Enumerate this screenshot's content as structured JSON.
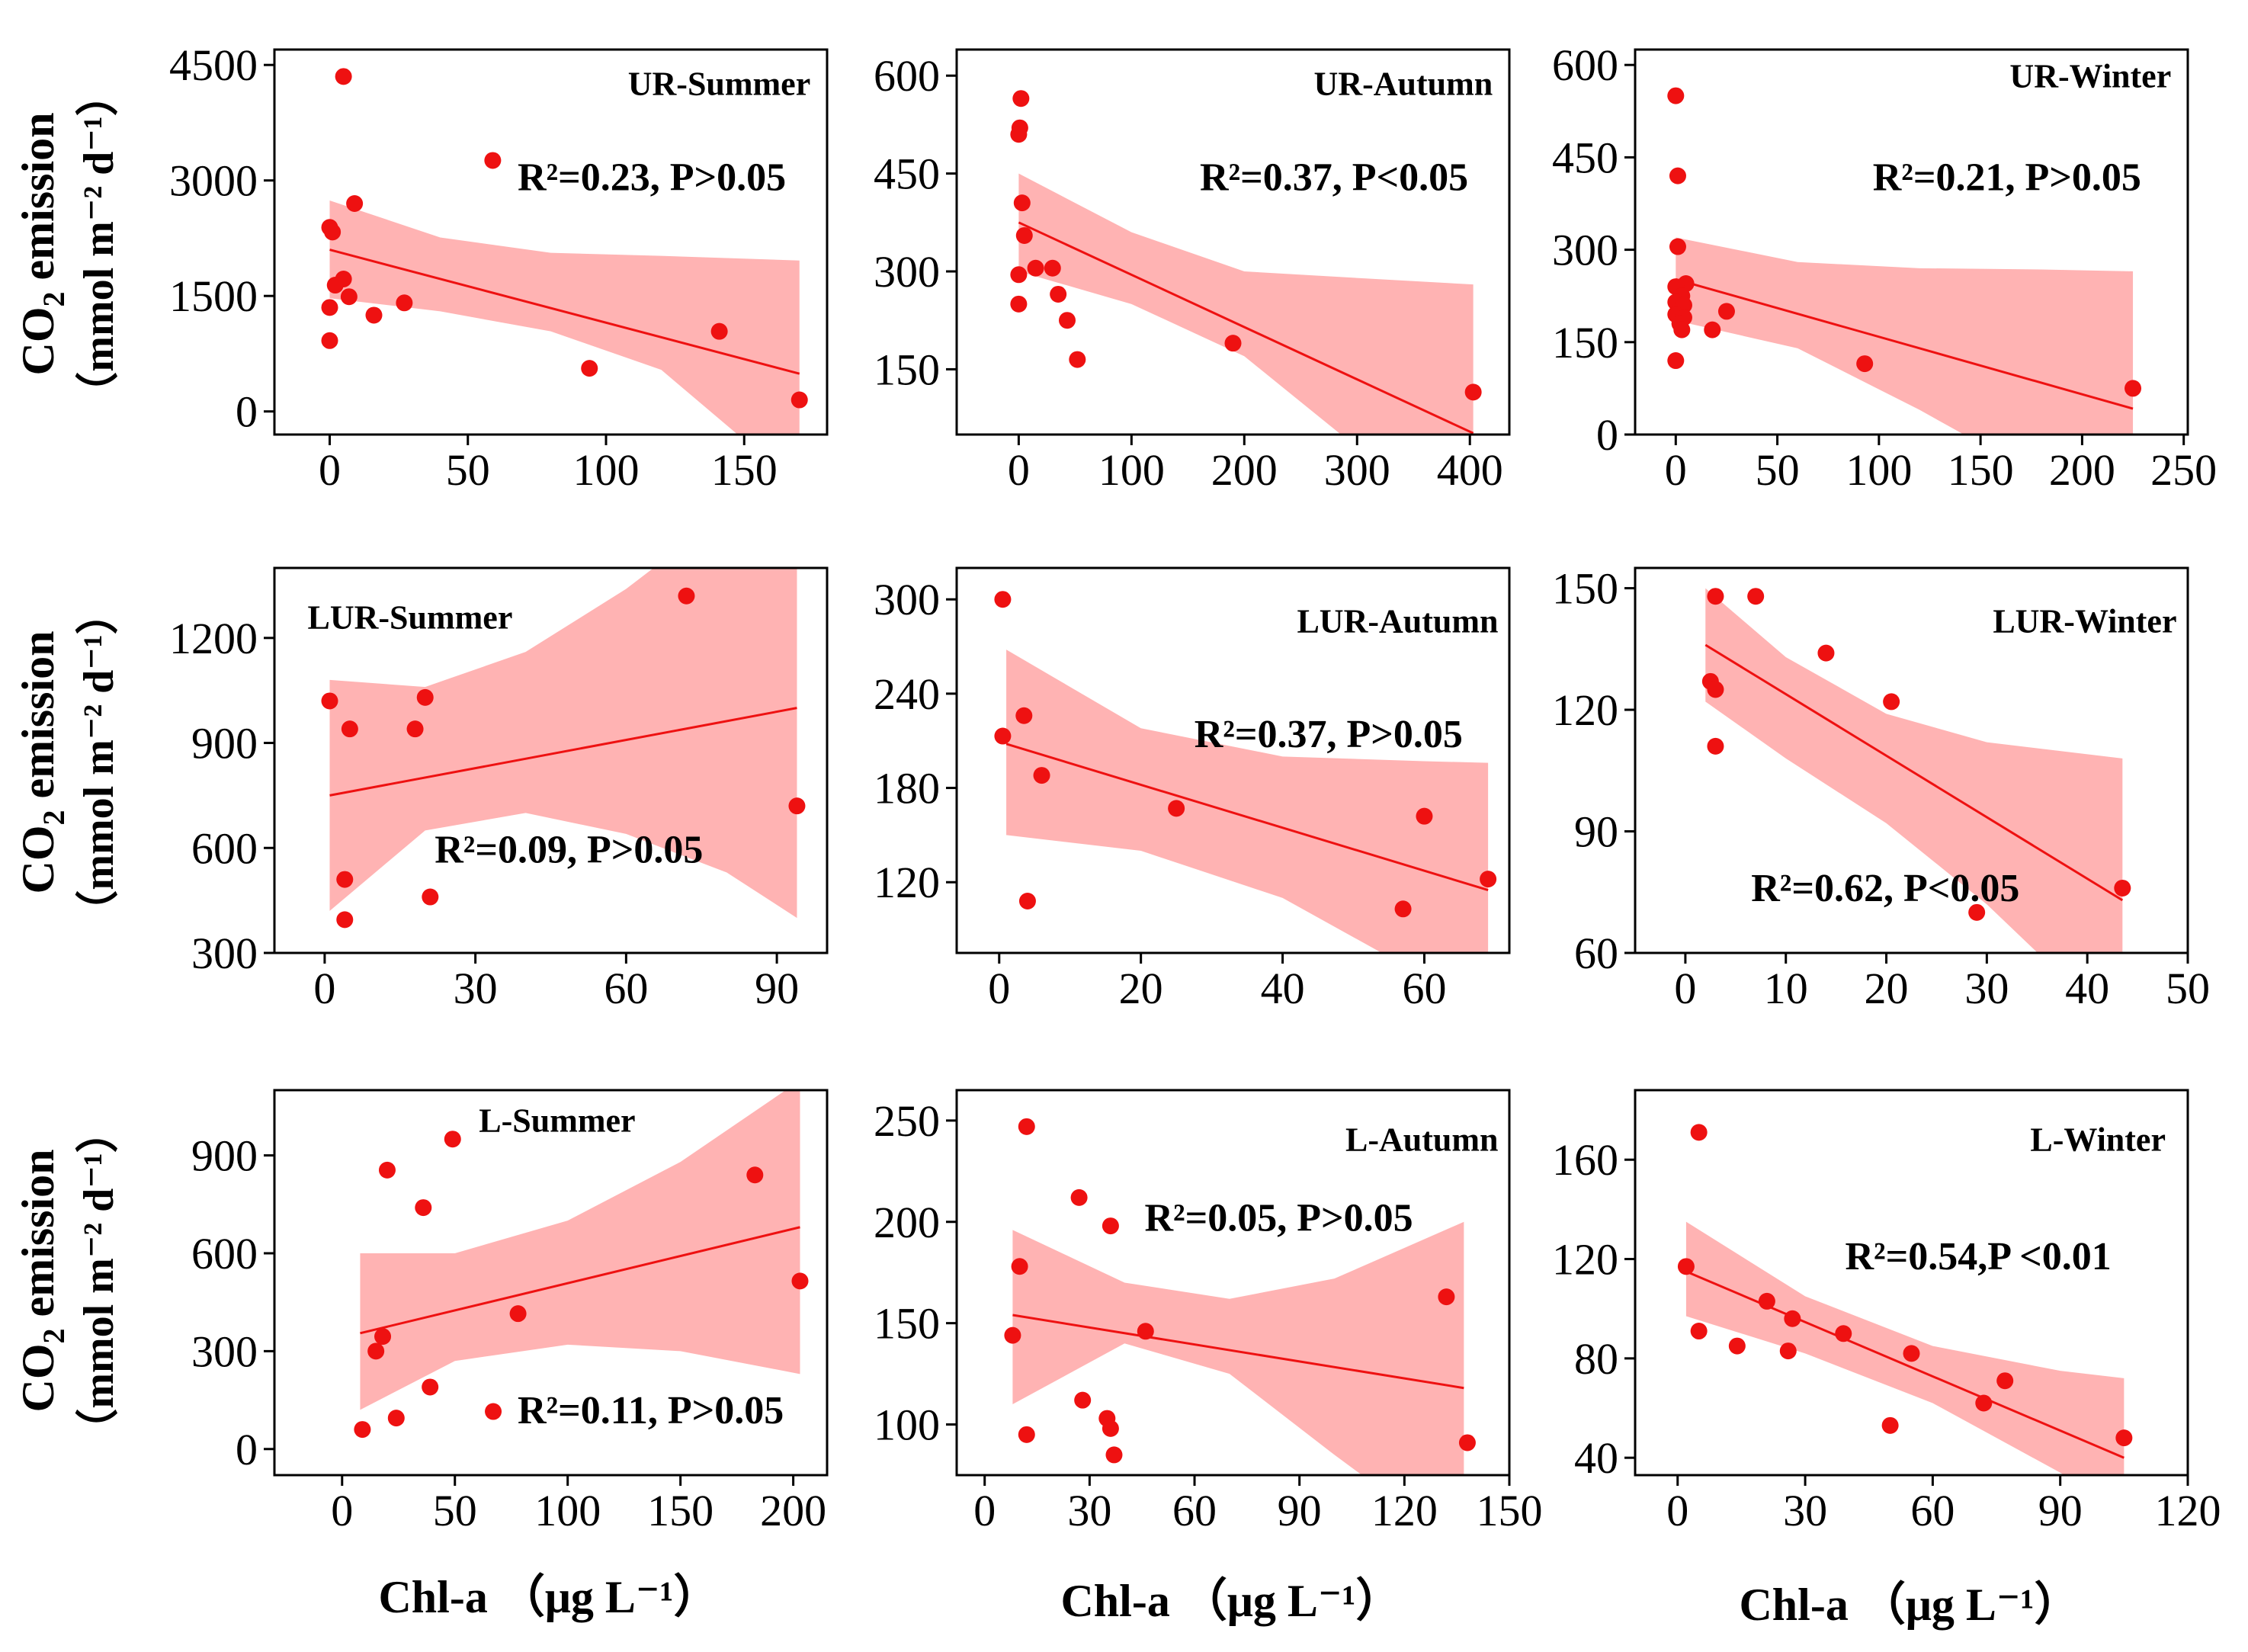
{
  "figure": {
    "y_axis_label_main": "CO",
    "y_axis_label_sub": "2",
    "y_axis_label_rest": " emission",
    "y_axis_unit": "（mmol m⁻² d⁻¹）",
    "x_axis_label": "Chl-a （μg L⁻¹）"
  },
  "colors": {
    "point": "#ee1111",
    "line": "#ee1111",
    "band": "#ffb3b3"
  },
  "chart_data": [
    {
      "type": "scatter",
      "label": "UR-Summer",
      "stat_text": "R²=0.23, P>0.05",
      "xlabel": "Chl-a （μg L⁻¹）",
      "ylabel": "CO2 emission (mmol m⁻² d⁻¹)",
      "xlim": [
        -20,
        180
      ],
      "ylim": [
        -300,
        4700
      ],
      "xticks": [
        0,
        50,
        100,
        150
      ],
      "yticks": [
        0,
        1500,
        3000,
        4500
      ],
      "points": [
        [
          5,
          4350
        ],
        [
          59,
          3260
        ],
        [
          9,
          2700
        ],
        [
          0,
          2390
        ],
        [
          1,
          2330
        ],
        [
          5,
          1720
        ],
        [
          2,
          1640
        ],
        [
          7,
          1490
        ],
        [
          0,
          1350
        ],
        [
          27,
          1410
        ],
        [
          16,
          1250
        ],
        [
          0,
          920
        ],
        [
          141,
          1040
        ],
        [
          94,
          560
        ],
        [
          170,
          150
        ]
      ],
      "fit": [
        [
          0,
          2100
        ],
        [
          170,
          490
        ]
      ],
      "band_upper": [
        [
          0,
          2740
        ],
        [
          40,
          2260
        ],
        [
          80,
          2060
        ],
        [
          120,
          2020
        ],
        [
          170,
          1960
        ]
      ],
      "band_lower": [
        [
          0,
          1470
        ],
        [
          40,
          1300
        ],
        [
          80,
          1040
        ],
        [
          120,
          540
        ],
        [
          170,
          -980
        ]
      ]
    },
    {
      "type": "scatter",
      "label": "UR-Autumn",
      "stat_text": "R²=0.37, P<0.05",
      "xlabel": "Chl-a （μg L⁻¹）",
      "ylabel": "CO2 emission (mmol m⁻² d⁻¹)",
      "xlim": [
        -55,
        435
      ],
      "ylim": [
        50,
        640
      ],
      "xticks": [
        0,
        100,
        200,
        300,
        400
      ],
      "yticks": [
        150,
        300,
        450,
        600
      ],
      "points": [
        [
          2,
          565
        ],
        [
          1,
          520
        ],
        [
          0,
          510
        ],
        [
          3,
          405
        ],
        [
          5,
          355
        ],
        [
          15,
          305
        ],
        [
          30,
          305
        ],
        [
          0,
          295
        ],
        [
          35,
          265
        ],
        [
          43,
          225
        ],
        [
          0,
          250
        ],
        [
          52,
          165
        ],
        [
          190,
          190
        ],
        [
          403,
          115
        ]
      ],
      "fit": [
        [
          0,
          375
        ],
        [
          403,
          52
        ]
      ],
      "band_upper": [
        [
          0,
          450
        ],
        [
          100,
          360
        ],
        [
          200,
          300
        ],
        [
          300,
          290
        ],
        [
          403,
          280
        ]
      ],
      "band_lower": [
        [
          0,
          300
        ],
        [
          100,
          250
        ],
        [
          200,
          170
        ],
        [
          300,
          30
        ],
        [
          403,
          -180
        ]
      ]
    },
    {
      "type": "scatter",
      "label": "UR-Winter",
      "stat_text": "R²=0.21, P>0.05",
      "xlabel": "Chl-a （μg L⁻¹）",
      "ylabel": "CO2 emission (mmol m⁻² d⁻¹)",
      "xlim": [
        -20,
        252
      ],
      "ylim": [
        0,
        625
      ],
      "xticks": [
        0,
        50,
        100,
        150,
        200,
        250
      ],
      "yticks": [
        0,
        150,
        300,
        450,
        600
      ],
      "points": [
        [
          0,
          550
        ],
        [
          1,
          420
        ],
        [
          1,
          305
        ],
        [
          5,
          245
        ],
        [
          0,
          240
        ],
        [
          3,
          225
        ],
        [
          0,
          215
        ],
        [
          4,
          210
        ],
        [
          0,
          195
        ],
        [
          4,
          190
        ],
        [
          2,
          180
        ],
        [
          3,
          170
        ],
        [
          18,
          170
        ],
        [
          25,
          200
        ],
        [
          0,
          120
        ],
        [
          93,
          115
        ],
        [
          225,
          75
        ]
      ],
      "fit": [
        [
          0,
          252
        ],
        [
          225,
          42
        ]
      ],
      "band_upper": [
        [
          0,
          320
        ],
        [
          60,
          280
        ],
        [
          120,
          270
        ],
        [
          180,
          268
        ],
        [
          225,
          265
        ]
      ],
      "band_lower": [
        [
          0,
          185
        ],
        [
          60,
          140
        ],
        [
          120,
          40
        ],
        [
          180,
          -70
        ],
        [
          225,
          -190
        ]
      ]
    },
    {
      "type": "scatter",
      "label": "LUR-Summer",
      "stat_text": "R²=0.09, P>0.05",
      "xlabel": "Chl-a （μg L⁻¹）",
      "ylabel": "CO2 emission (mmol m⁻² d⁻¹)",
      "xlim": [
        -10,
        100
      ],
      "ylim": [
        300,
        1400
      ],
      "xticks": [
        0,
        30,
        60,
        90
      ],
      "yticks": [
        300,
        600,
        900,
        1200
      ],
      "points": [
        [
          72,
          1320
        ],
        [
          1,
          1020
        ],
        [
          20,
          1030
        ],
        [
          18,
          940
        ],
        [
          5,
          940
        ],
        [
          94,
          720
        ],
        [
          4,
          510
        ],
        [
          21,
          460
        ],
        [
          4,
          395
        ]
      ],
      "fit": [
        [
          1,
          750
        ],
        [
          94,
          1000
        ]
      ],
      "band_upper": [
        [
          1,
          1080
        ],
        [
          20,
          1060
        ],
        [
          40,
          1160
        ],
        [
          60,
          1340
        ],
        [
          80,
          1560
        ],
        [
          94,
          1720
        ]
      ],
      "band_lower": [
        [
          1,
          420
        ],
        [
          20,
          650
        ],
        [
          40,
          700
        ],
        [
          60,
          640
        ],
        [
          80,
          530
        ],
        [
          94,
          400
        ]
      ]
    },
    {
      "type": "scatter",
      "label": "LUR-Autumn",
      "stat_text": "R²=0.37, P>0.05",
      "xlabel": "Chl-a （μg L⁻¹）",
      "ylabel": "CO2 emission (mmol m⁻² d⁻¹)",
      "xlim": [
        -6,
        72
      ],
      "ylim": [
        75,
        320
      ],
      "xticks": [
        0,
        20,
        40,
        60
      ],
      "yticks": [
        120,
        180,
        240,
        300
      ],
      "points": [
        [
          0.5,
          300
        ],
        [
          3.5,
          226
        ],
        [
          0.5,
          213
        ],
        [
          6,
          188
        ],
        [
          25,
          167
        ],
        [
          60,
          162
        ],
        [
          69,
          122
        ],
        [
          4,
          108
        ],
        [
          57,
          103
        ]
      ],
      "fit": [
        [
          1,
          208
        ],
        [
          69,
          115
        ]
      ],
      "band_upper": [
        [
          1,
          268
        ],
        [
          20,
          218
        ],
        [
          40,
          200
        ],
        [
          60,
          197
        ],
        [
          69,
          196
        ]
      ],
      "band_lower": [
        [
          1,
          150
        ],
        [
          20,
          140
        ],
        [
          40,
          110
        ],
        [
          60,
          60
        ],
        [
          69,
          35
        ]
      ]
    },
    {
      "type": "scatter",
      "label": "LUR-Winter",
      "stat_text": "R²=0.62, P<0.05",
      "xlabel": "Chl-a （μg L⁻¹）",
      "ylabel": "CO2 emission (mmol m⁻² d⁻¹)",
      "xlim": [
        -5,
        50
      ],
      "ylim": [
        60,
        155
      ],
      "xticks": [
        0,
        10,
        20,
        30,
        40,
        50
      ],
      "yticks": [
        60,
        90,
        120,
        150
      ],
      "points": [
        [
          3,
          148
        ],
        [
          7,
          148
        ],
        [
          14,
          134
        ],
        [
          2.5,
          127
        ],
        [
          3,
          125
        ],
        [
          20.5,
          122
        ],
        [
          3,
          111
        ],
        [
          29,
          70
        ],
        [
          43.5,
          76
        ]
      ],
      "fit": [
        [
          2,
          136
        ],
        [
          43.5,
          73
        ]
      ],
      "band_upper": [
        [
          2,
          150
        ],
        [
          10,
          133
        ],
        [
          20,
          119
        ],
        [
          30,
          112
        ],
        [
          43.5,
          108
        ]
      ],
      "band_lower": [
        [
          2,
          122
        ],
        [
          10,
          108
        ],
        [
          20,
          92
        ],
        [
          30,
          72
        ],
        [
          43.5,
          40
        ]
      ]
    },
    {
      "type": "scatter",
      "label": "L-Summer",
      "stat_text": "R²=0.11, P>0.05",
      "xlabel": "Chl-a （μg L⁻¹）",
      "ylabel": "CO2 emission (mmol m⁻² d⁻¹)",
      "xlim": [
        -30,
        215
      ],
      "ylim": [
        -80,
        1100
      ],
      "xticks": [
        0,
        50,
        100,
        150,
        200
      ],
      "yticks": [
        0,
        300,
        600,
        900
      ],
      "points": [
        [
          49,
          950
        ],
        [
          20,
          855
        ],
        [
          183,
          840
        ],
        [
          36,
          740
        ],
        [
          203,
          515
        ],
        [
          78,
          415
        ],
        [
          18,
          345
        ],
        [
          15,
          300
        ],
        [
          39,
          190
        ],
        [
          67,
          115
        ],
        [
          24,
          95
        ],
        [
          9,
          60
        ]
      ],
      "fit": [
        [
          8,
          355
        ],
        [
          203,
          680
        ]
      ],
      "band_upper": [
        [
          8,
          600
        ],
        [
          50,
          600
        ],
        [
          100,
          700
        ],
        [
          150,
          880
        ],
        [
          203,
          1130
        ]
      ],
      "band_lower": [
        [
          8,
          120
        ],
        [
          50,
          270
        ],
        [
          100,
          320
        ],
        [
          150,
          300
        ],
        [
          203,
          230
        ]
      ]
    },
    {
      "type": "scatter",
      "label": "L-Autumn",
      "stat_text": "R²=0.05, P>0.05",
      "xlabel": "Chl-a （μg L⁻¹）",
      "ylabel": "CO2 emission (mmol m⁻² d⁻¹)",
      "xlim": [
        -8,
        150
      ],
      "ylim": [
        75,
        265
      ],
      "xticks": [
        0,
        30,
        60,
        90,
        120,
        150
      ],
      "yticks": [
        100,
        150,
        200,
        250
      ],
      "points": [
        [
          12,
          247
        ],
        [
          27,
          212
        ],
        [
          36,
          198
        ],
        [
          10,
          178
        ],
        [
          8,
          144
        ],
        [
          46,
          146
        ],
        [
          132,
          163
        ],
        [
          28,
          112
        ],
        [
          35,
          103
        ],
        [
          36,
          98
        ],
        [
          12,
          95
        ],
        [
          37,
          85
        ],
        [
          138,
          91
        ]
      ],
      "fit": [
        [
          8,
          154
        ],
        [
          137,
          118
        ]
      ],
      "band_upper": [
        [
          8,
          196
        ],
        [
          40,
          170
        ],
        [
          70,
          162
        ],
        [
          100,
          172
        ],
        [
          137,
          200
        ]
      ],
      "band_lower": [
        [
          8,
          110
        ],
        [
          40,
          140
        ],
        [
          70,
          125
        ],
        [
          100,
          85
        ],
        [
          137,
          38
        ]
      ]
    },
    {
      "type": "scatter",
      "label": "L-Winter",
      "stat_text": "R²=0.54,P <0.01",
      "xlabel": "Chl-a （μg L⁻¹）",
      "ylabel": "CO2 emission (mmol m⁻² d⁻¹)",
      "xlim": [
        -10,
        120
      ],
      "ylim": [
        33,
        188
      ],
      "xticks": [
        0,
        30,
        60,
        90,
        120
      ],
      "yticks": [
        40,
        80,
        120,
        160
      ],
      "points": [
        [
          5,
          171
        ],
        [
          2,
          117
        ],
        [
          21,
          103
        ],
        [
          27,
          96
        ],
        [
          39,
          90
        ],
        [
          55,
          82
        ],
        [
          5,
          91
        ],
        [
          14,
          85
        ],
        [
          26,
          83
        ],
        [
          77,
          71
        ],
        [
          72,
          62
        ],
        [
          50,
          53
        ],
        [
          105,
          48
        ]
      ],
      "fit": [
        [
          2,
          115
        ],
        [
          105,
          40
        ]
      ],
      "band_upper": [
        [
          2,
          135
        ],
        [
          30,
          105
        ],
        [
          60,
          85
        ],
        [
          90,
          75
        ],
        [
          105,
          72
        ]
      ],
      "band_lower": [
        [
          2,
          97
        ],
        [
          30,
          82
        ],
        [
          60,
          62
        ],
        [
          90,
          34
        ],
        [
          105,
          18
        ]
      ]
    }
  ]
}
